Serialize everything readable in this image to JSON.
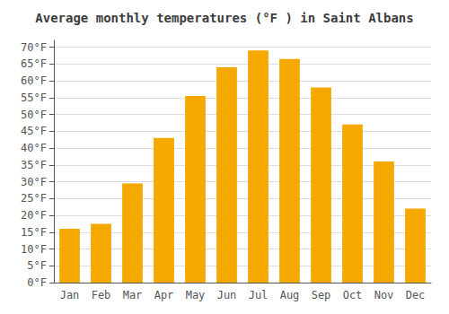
{
  "chart_data": {
    "type": "bar",
    "title": "Average monthly temperatures (°F ) in Saint Albans",
    "categories": [
      "Jan",
      "Feb",
      "Mar",
      "Apr",
      "May",
      "Jun",
      "Jul",
      "Aug",
      "Sep",
      "Oct",
      "Nov",
      "Dec"
    ],
    "values": [
      16,
      17.5,
      29.5,
      43,
      55.5,
      64,
      69,
      66.5,
      58,
      47,
      36,
      22
    ],
    "color": "#F5A800",
    "ylim": [
      0,
      72
    ],
    "yticks": [
      {
        "value": 0,
        "label": "0°F"
      },
      {
        "value": 5,
        "label": "5°F"
      },
      {
        "value": 10,
        "label": "10°F"
      },
      {
        "value": 15,
        "label": "15°F"
      },
      {
        "value": 20,
        "label": "20°F"
      },
      {
        "value": 25,
        "label": "25°F"
      },
      {
        "value": 30,
        "label": "30°F"
      },
      {
        "value": 35,
        "label": "35°F"
      },
      {
        "value": 40,
        "label": "40°F"
      },
      {
        "value": 45,
        "label": "45°F"
      },
      {
        "value": 50,
        "label": "50°F"
      },
      {
        "value": 55,
        "label": "55°F"
      },
      {
        "value": 60,
        "label": "60°F"
      },
      {
        "value": 65,
        "label": "65°F"
      },
      {
        "value": 70,
        "label": "70°F"
      }
    ],
    "grid": true
  }
}
